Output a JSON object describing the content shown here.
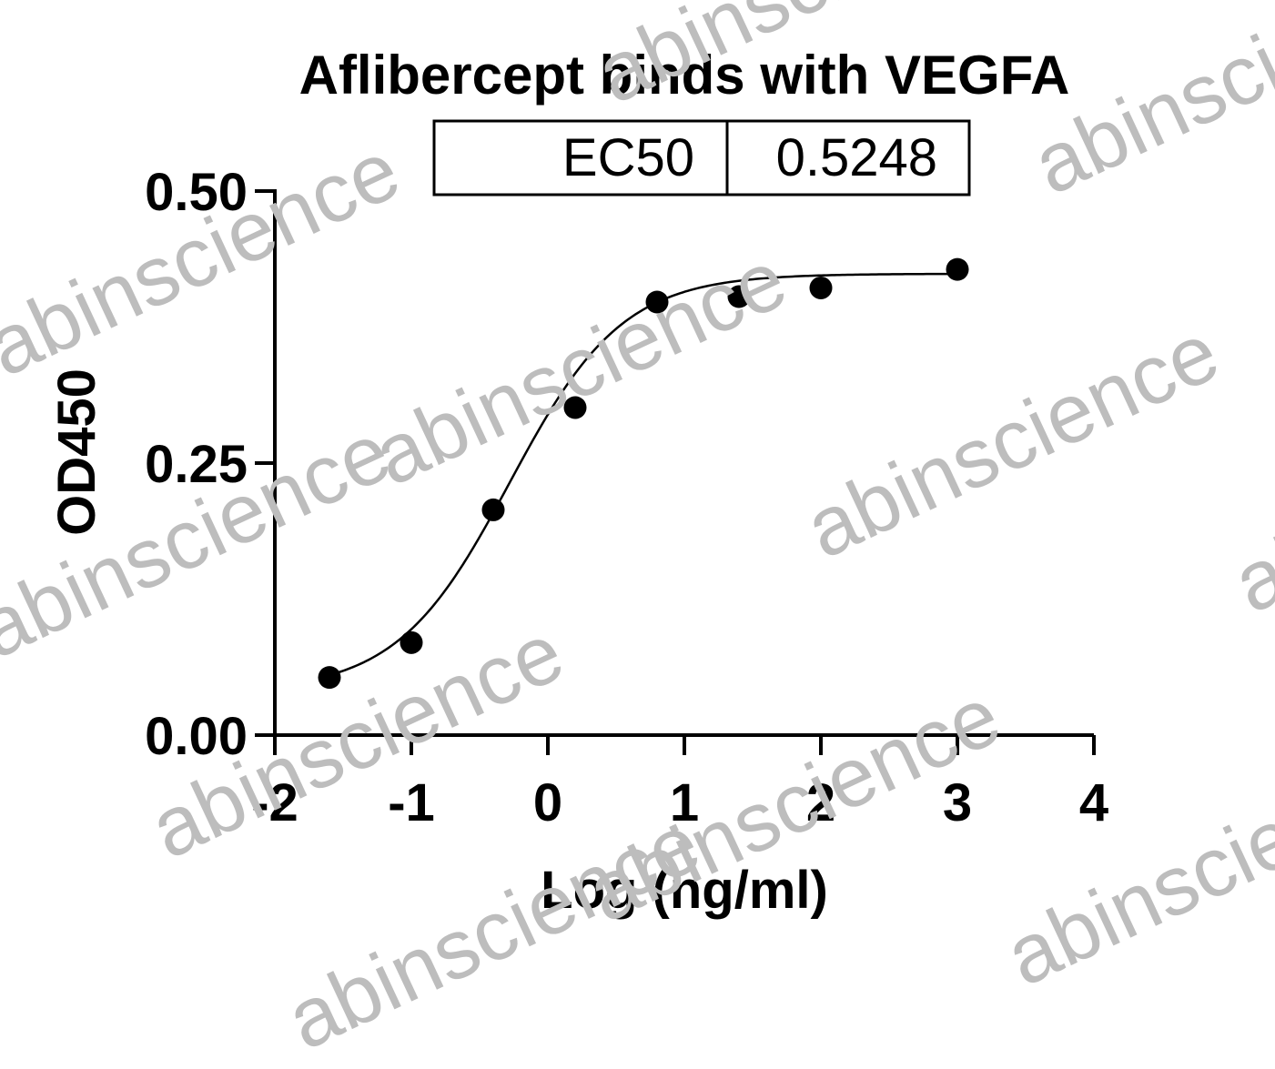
{
  "watermark": "abinscience",
  "chart_data": {
    "type": "scatter",
    "title": "Aflibercept binds with VEGFA",
    "xlabel": "Log (ng/ml)",
    "ylabel": "OD450",
    "xlim": [
      -2,
      4
    ],
    "ylim": [
      0,
      0.5
    ],
    "x_ticks": [
      -2,
      -1,
      0,
      1,
      2,
      3,
      4
    ],
    "x_tick_labels": [
      "-2",
      "-1",
      "0",
      "1",
      "2",
      "3",
      "4"
    ],
    "y_ticks": [
      0,
      0.25,
      0.5
    ],
    "y_tick_labels": [
      "0.00",
      "0.25",
      "0.50"
    ],
    "grid": false,
    "legend": "none",
    "series": [
      {
        "x": [
          -1.6,
          -1.0,
          -0.4,
          0.2,
          0.8,
          1.4,
          2.0,
          3.0
        ],
        "y": [
          0.053,
          0.085,
          0.207,
          0.301,
          0.398,
          0.403,
          0.411,
          0.428
        ],
        "color": "#000000"
      }
    ],
    "fit_curve": {
      "model": "4PL",
      "bottom": 0.04,
      "top": 0.424,
      "logEC50": -0.28,
      "hill": 1.05,
      "color": "#000000"
    },
    "annotation_table": {
      "label": "EC50",
      "value": "0.5248"
    }
  }
}
